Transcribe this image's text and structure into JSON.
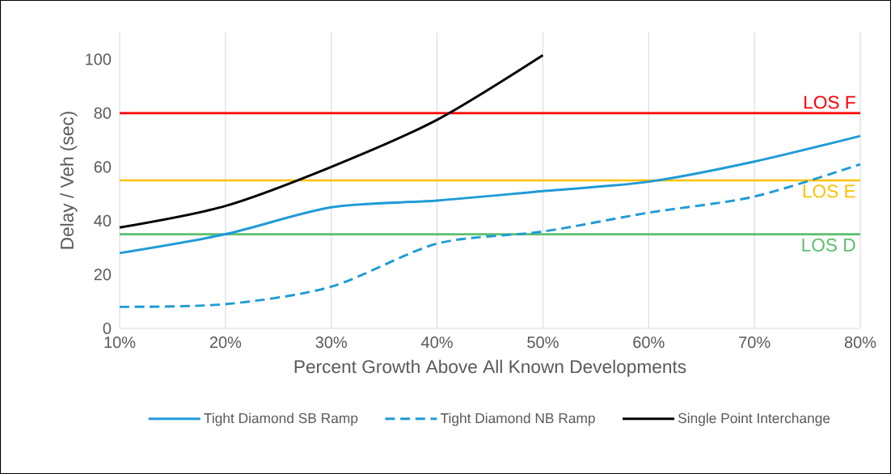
{
  "chart_data": {
    "type": "line",
    "xlabel": "Percent Growth Above All Known Developments",
    "ylabel": "Delay / Veh (sec)",
    "xlim": [
      10,
      80
    ],
    "xticks": [
      {
        "value": 10,
        "label": "10%"
      },
      {
        "value": 20,
        "label": "20%"
      },
      {
        "value": 30,
        "label": "30%"
      },
      {
        "value": 40,
        "label": "40%"
      },
      {
        "value": 50,
        "label": "50%"
      },
      {
        "value": 60,
        "label": "60%"
      },
      {
        "value": 70,
        "label": "70%"
      },
      {
        "value": 80,
        "label": "80%"
      }
    ],
    "ylim": [
      0,
      110
    ],
    "yticks": [
      0,
      20,
      40,
      60,
      80,
      100
    ],
    "grid": "x",
    "legend": "bottom",
    "marker": "none",
    "series": [
      {
        "name": "Tight Diamond SB Ramp",
        "color": "#1f9bd7",
        "line_style": "solid",
        "x": [
          10,
          20,
          30,
          40,
          50,
          60,
          70,
          80
        ],
        "values": [
          28,
          35,
          45,
          47.5,
          51,
          54.5,
          62,
          71.5
        ]
      },
      {
        "name": "Tight Diamond NB Ramp",
        "color": "#1f9bd7",
        "line_style": "dashed",
        "x": [
          10,
          20,
          30,
          40,
          50,
          60,
          70,
          80
        ],
        "values": [
          8,
          9,
          15.5,
          31.5,
          36,
          43,
          49,
          61
        ]
      },
      {
        "name": "Single Point Interchange",
        "color": "#000000",
        "line_style": "solid",
        "x": [
          10,
          20,
          30,
          40,
          50
        ],
        "values": [
          37.5,
          45.5,
          60,
          77.5,
          101.5
        ]
      }
    ],
    "ref_lines": [
      {
        "axis": "y",
        "value": 80,
        "label": "LOS F",
        "color": "#ff0000"
      },
      {
        "axis": "y",
        "value": 55,
        "label": "LOS E",
        "color": "#ffc000"
      },
      {
        "axis": "y",
        "value": 35,
        "label": "LOS D",
        "color": "#5cbf6e"
      }
    ]
  }
}
